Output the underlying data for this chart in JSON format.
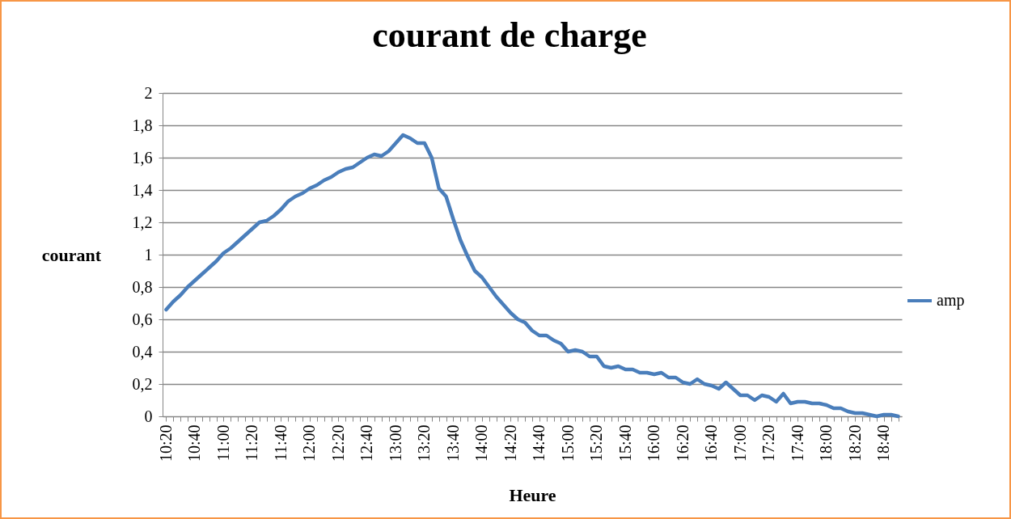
{
  "chart_data": {
    "type": "line",
    "title": "courant de charge",
    "xlabel": "Heure",
    "ylabel": "courant",
    "categories": [
      "10:20",
      null,
      null,
      null,
      "10:40",
      null,
      null,
      null,
      "11:00",
      null,
      null,
      null,
      "11:20",
      null,
      null,
      null,
      "11:40",
      null,
      null,
      null,
      "12:00",
      null,
      null,
      null,
      "12:20",
      null,
      null,
      null,
      "12:40",
      null,
      null,
      null,
      "13:00",
      null,
      null,
      null,
      "13:20",
      null,
      null,
      null,
      "13:40",
      null,
      null,
      null,
      "14:00",
      null,
      null,
      null,
      "14:20",
      null,
      null,
      null,
      "14:40",
      null,
      null,
      null,
      "15:00",
      null,
      null,
      null,
      "15:20",
      null,
      null,
      null,
      "15:40",
      null,
      null,
      null,
      "16:00",
      null,
      null,
      null,
      "16:20",
      null,
      null,
      null,
      "16:40",
      null,
      null,
      null,
      "17:00",
      null,
      null,
      null,
      "17:20",
      null,
      null,
      null,
      "17:40",
      null,
      null,
      null,
      "18:00",
      null,
      null,
      null,
      "18:20",
      null,
      null,
      null,
      "18:40",
      null,
      null
    ],
    "series": [
      {
        "name": "amp",
        "color": "#4a7ebb",
        "values": [
          0.66,
          0.71,
          0.75,
          0.8,
          0.84,
          0.88,
          0.92,
          0.96,
          1.01,
          1.04,
          1.08,
          1.12,
          1.16,
          1.2,
          1.21,
          1.24,
          1.28,
          1.33,
          1.36,
          1.38,
          1.41,
          1.43,
          1.46,
          1.48,
          1.51,
          1.53,
          1.54,
          1.57,
          1.6,
          1.62,
          1.61,
          1.64,
          1.69,
          1.74,
          1.72,
          1.69,
          1.69,
          1.6,
          1.41,
          1.36,
          1.22,
          1.09,
          0.99,
          0.9,
          0.86,
          0.8,
          0.74,
          0.69,
          0.64,
          0.6,
          0.58,
          0.53,
          0.5,
          0.5,
          0.47,
          0.45,
          0.4,
          0.41,
          0.4,
          0.37,
          0.37,
          0.31,
          0.3,
          0.31,
          0.29,
          0.29,
          0.27,
          0.27,
          0.26,
          0.27,
          0.24,
          0.24,
          0.21,
          0.2,
          0.23,
          0.2,
          0.19,
          0.17,
          0.21,
          0.17,
          0.13,
          0.13,
          0.1,
          0.13,
          0.12,
          0.09,
          0.14,
          0.08,
          0.09,
          0.09,
          0.08,
          0.08,
          0.07,
          0.05,
          0.05,
          0.03,
          0.02,
          0.02,
          0.01,
          0,
          0.01,
          0.01,
          0
        ]
      }
    ],
    "ylim": [
      0,
      2
    ],
    "yticks": [
      0,
      {
        "value": 0.2,
        "label": "0,2"
      },
      {
        "value": 0.4,
        "label": "0,4"
      },
      {
        "value": 0.6,
        "label": "0,6"
      },
      {
        "value": 0.8,
        "label": "0,8"
      },
      1,
      {
        "value": 1.2,
        "label": "1,2"
      },
      {
        "value": 1.4,
        "label": "1,4"
      },
      {
        "value": 1.6,
        "label": "1,6"
      },
      {
        "value": 1.8,
        "label": "1,8"
      },
      2
    ],
    "grid": "y",
    "legend": "right",
    "marker": "none",
    "line_style": "solid"
  }
}
